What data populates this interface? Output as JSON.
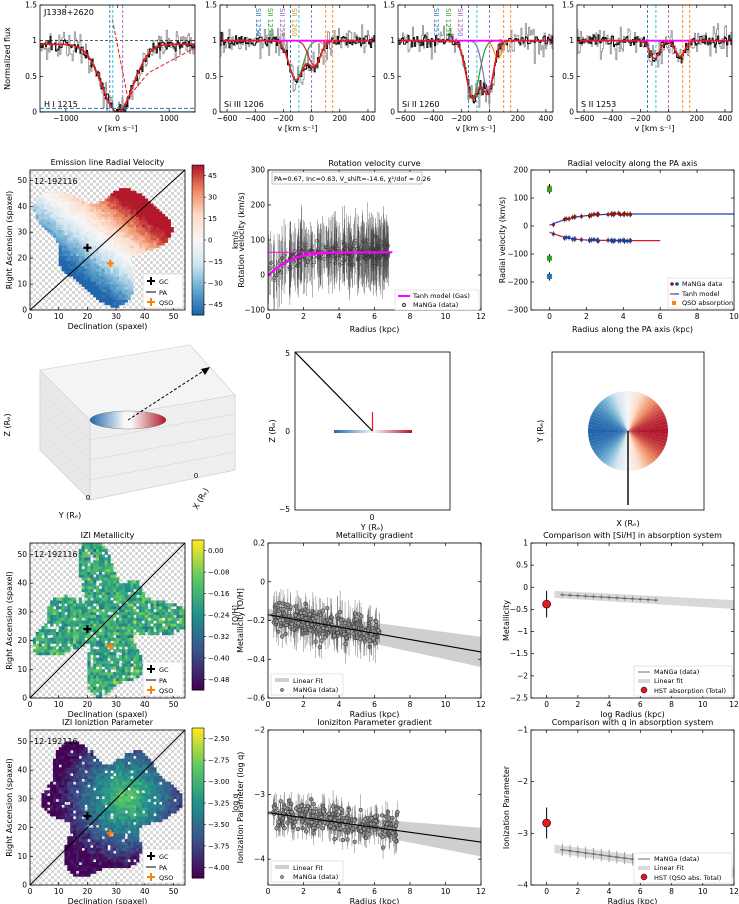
{
  "figure": {
    "spectra": [
      {
        "label": "H I 1215",
        "name": "J1338+2620",
        "xlim": [
          -1500,
          1500
        ],
        "xticks": [
          -1000,
          0,
          1000
        ],
        "xlabel": "v [km s⁻¹]",
        "ylabel": "Normalized flux",
        "ylim": [
          0,
          1.5
        ],
        "yticks": [
          0,
          0.5,
          1.0,
          1.5
        ],
        "vlines": [
          -150,
          -90,
          100
        ],
        "lines": []
      },
      {
        "label": "Si III 1206",
        "xlim": [
          -650,
          450
        ],
        "xticks": [
          -600,
          -400,
          -200,
          0,
          200,
          400
        ],
        "xlabel": "v [km s⁻¹]",
        "ylim": [
          0,
          1.5
        ],
        "yticks": [
          0,
          0.5,
          1.0,
          1.5
        ],
        "vlines": [
          -150,
          -90,
          0,
          100,
          150
        ],
        "lines": [
          "SII 1250",
          "SII 1253",
          "SII 1259",
          "SII 1260"
        ]
      },
      {
        "label": "Si II 1260",
        "xlim": [
          -650,
          450
        ],
        "xticks": [
          -600,
          -400,
          -200,
          0,
          200,
          400
        ],
        "xlabel": "v [km s⁻¹]",
        "ylim": [
          0,
          1.5
        ],
        "yticks": [
          0,
          0.5,
          1.0,
          1.5
        ],
        "vlines": [
          -150,
          -90,
          0,
          100,
          150
        ],
        "lines": [
          "SII 1253",
          "SII 1259",
          "SII 1250"
        ]
      },
      {
        "label": "S II 1253",
        "xlim": [
          -650,
          450
        ],
        "xticks": [
          -600,
          -400,
          -200,
          0,
          200,
          400
        ],
        "xlabel": "v [km s⁻¹]",
        "ylim": [
          0,
          1.5
        ],
        "yticks": [
          0,
          0.5,
          1.0,
          1.5
        ],
        "vlines": [
          -150,
          -90,
          0,
          100,
          150
        ],
        "lines": []
      }
    ],
    "row2": {
      "map": {
        "title": "Emission line Radial Velocity",
        "id": "12-192116",
        "xlabel": "Declination (spaxel)",
        "ylabel": "Right Ascension (spaxel)",
        "cbar_label": "km/s",
        "cbar_ticks": [
          "45",
          "30",
          "15",
          "0",
          "-15",
          "-30",
          "-45"
        ],
        "legend": [
          "GC",
          "PA",
          "QSO"
        ],
        "ticks": [
          0,
          10,
          20,
          30,
          40,
          50
        ]
      },
      "rot": {
        "title": "Rotation velocity curve",
        "annot": "PA=0.67, Inc=0.63, V_shift=-14.6, χ²/dof = 0.26",
        "xlabel": "Radius (kpc)",
        "ylabel": "Rotation velocity (km/s)",
        "xlim": [
          0,
          12
        ],
        "ylim": [
          -100,
          300
        ],
        "xticks": [
          0,
          2,
          4,
          6,
          8,
          10,
          12
        ],
        "yticks": [
          -100,
          0,
          100,
          200,
          300
        ],
        "legend": [
          "Tanh model (Gas)",
          "MaNGa (data)"
        ],
        "model_vmax": 65,
        "model_rt": 1.6
      },
      "radvel": {
        "title": "Radial velocity  along the PA axis",
        "xlabel": "Radius  along the PA axis (kpc)",
        "ylabel": "Radial velocity (km/s)",
        "xlim": [
          -1,
          10
        ],
        "ylim": [
          -300,
          200
        ],
        "xticks": [
          0,
          2,
          4,
          6,
          8,
          10
        ],
        "yticks": [
          -300,
          -200,
          -100,
          0,
          100,
          200
        ],
        "legend": [
          "MaNGa data",
          "Tanh model",
          "QSO absorption"
        ],
        "qso": [
          {
            "v": 135,
            "c": "#ff7f0e"
          },
          {
            "v": 130,
            "c": "#2ca02c"
          },
          {
            "v": -115,
            "c": "#2ca02c"
          },
          {
            "v": -180,
            "c": "#1f77b4"
          }
        ]
      }
    },
    "row3": {
      "ax3d": {
        "zlabel": "Z (Rₑ)",
        "ylabel": "Y (Rₑ)",
        "xlabel": "X (Rₑ)",
        "ticks": [
          "0",
          "0"
        ]
      },
      "side": {
        "xlabel": "Y (Rₑ)",
        "ylabel": "Z (Rₑ)",
        "ticks": [
          "5",
          "0",
          "−5",
          "0"
        ]
      },
      "face": {
        "xlabel": "X (Rₑ)",
        "ylabel": "Y (Rₑ)"
      }
    },
    "row4": {
      "map": {
        "title": "IZI Metallicity",
        "id": "12-192116",
        "xlabel": "Declination (spaxel)",
        "ylabel": "Right Ascension (spaxel)",
        "cbar_label": "[O/H]",
        "cbar_ticks": [
          "0.00",
          "-0.08",
          "-0.16",
          "-0.24",
          "-0.32",
          "-0.40",
          "-0.48"
        ],
        "legend": [
          "GC",
          "PA",
          "QSO"
        ],
        "ticks": [
          0,
          10,
          20,
          30,
          40,
          50
        ]
      },
      "grad": {
        "title": "Metallicity gradient",
        "xlabel": "Radius (kpc)",
        "ylabel": "Metallicity [O/H]",
        "xlim": [
          0,
          12
        ],
        "ylim": [
          -0.6,
          0.2
        ],
        "xticks": [
          0,
          2,
          4,
          6,
          8,
          10,
          12
        ],
        "yticks": [
          -0.6,
          -0.4,
          -0.2,
          0.0,
          0.2
        ],
        "legend": [
          "Linear Fit",
          "MaNGa (data)"
        ],
        "fit": [
          -0.17,
          -0.016
        ]
      },
      "comp": {
        "title": "Comparison with [Si/H] in absorption system",
        "xlabel": "log Radius (kpc)",
        "ylabel": "Metallicity",
        "xlim": [
          -1,
          12
        ],
        "ylim": [
          -2.5,
          1
        ],
        "xticks": [
          0,
          2,
          4,
          6,
          8,
          10,
          12
        ],
        "yticks": [
          -2.5,
          -2,
          -1.5,
          -1,
          -0.5,
          0,
          0.5,
          1
        ],
        "legend": [
          "MaNGa (data)",
          "Linear fit",
          "HST absorption (Total)"
        ],
        "hst": {
          "x": 0,
          "y": -0.38,
          "err": 0.3
        }
      }
    },
    "row5": {
      "map": {
        "title": "IZI Ioniztion Parameter",
        "id": "12-192116",
        "xlabel": "Declination (spaxel)",
        "ylabel": "Right Ascension (spaxel)",
        "cbar_label": "log q",
        "cbar_ticks": [
          "-2.50",
          "-2.75",
          "-3.00",
          "-3.25",
          "-3.50",
          "-3.75",
          "-4.00"
        ],
        "legend": [
          "GC",
          "PA",
          "QSO"
        ],
        "ticks": [
          0,
          10,
          20,
          30,
          40,
          50
        ]
      },
      "grad": {
        "title": "Ioniziton Parameter gradient",
        "xlabel": "Radius (kpc)",
        "ylabel": "Ionization Parameter (log q)",
        "xlim": [
          0,
          12
        ],
        "ylim": [
          -4.4,
          -2
        ],
        "xticks": [
          0,
          2,
          4,
          6,
          8,
          10,
          12
        ],
        "yticks": [
          -4,
          -3,
          -2
        ],
        "legend": [
          "Linear Fit",
          "MaNGa (data)"
        ],
        "fit": [
          -3.28,
          -0.038
        ]
      },
      "comp": {
        "title": "Comparison with q in absorption system",
        "xlabel": "Radius (kpc)",
        "ylabel": "Ionization Parameter",
        "xlim": [
          -1,
          12
        ],
        "ylim": [
          -4,
          -1
        ],
        "xticks": [
          0,
          2,
          4,
          6,
          8,
          10,
          12
        ],
        "yticks": [
          -4,
          -3,
          -2,
          -1
        ],
        "legend": [
          "MaNGa (data)",
          "Linear Fit",
          "HST (QSO abs. Total)"
        ],
        "hst": {
          "x": 0,
          "y": -2.8,
          "err": 0.3
        }
      }
    }
  },
  "chart_data": [
    {
      "type": "line",
      "title": "H I 1215 (J1338+2620)",
      "xlabel": "v [km s⁻¹]",
      "ylabel": "Normalized flux",
      "x_range": [
        -1500,
        1500
      ],
      "y_range": [
        0,
        1.5
      ],
      "series": [
        {
          "name": "Voigt fit",
          "x": [
            -1500,
            -1000,
            -500,
            -300,
            -200,
            0,
            200,
            400,
            600,
            1000,
            1500
          ],
          "y": [
            0.95,
            0.9,
            0.55,
            0.2,
            0.02,
            0.0,
            0.05,
            0.35,
            0.6,
            0.85,
            0.92
          ]
        }
      ]
    },
    {
      "type": "line",
      "title": "Si III 1206",
      "xlabel": "v [km s⁻¹]",
      "x_range": [
        -650,
        450
      ],
      "y_range": [
        0,
        1.5
      ],
      "series": [
        {
          "name": "Total fit",
          "x": [
            -600,
            -300,
            -200,
            -100,
            0,
            100,
            200,
            400
          ],
          "y": [
            1.0,
            0.98,
            0.55,
            0.3,
            0.45,
            0.75,
            0.95,
            1.0
          ]
        }
      ]
    },
    {
      "type": "line",
      "title": "Si II 1260",
      "xlabel": "v [km s⁻¹]",
      "x_range": [
        -650,
        450
      ],
      "y_range": [
        0,
        1.5
      ],
      "series": [
        {
          "name": "Total fit",
          "x": [
            -600,
            -300,
            -200,
            -100,
            0,
            100,
            200,
            400
          ],
          "y": [
            1.0,
            0.95,
            0.4,
            0.1,
            0.15,
            0.6,
            0.95,
            1.0
          ]
        }
      ]
    },
    {
      "type": "line",
      "title": "S II 1253",
      "xlabel": "v [km s⁻¹]",
      "x_range": [
        -650,
        450
      ],
      "y_range": [
        0,
        1.5
      ],
      "series": [
        {
          "name": "Total fit",
          "x": [
            -600,
            -200,
            -100,
            0,
            100,
            200,
            400
          ],
          "y": [
            1.0,
            0.98,
            0.75,
            0.8,
            0.75,
            0.98,
            1.0
          ]
        }
      ]
    },
    {
      "type": "scatter",
      "title": "Rotation velocity curve",
      "xlabel": "Radius (kpc)",
      "ylabel": "Rotation velocity (km/s)",
      "x_range": [
        0,
        12
      ],
      "y_range": [
        -100,
        300
      ],
      "series": [
        {
          "name": "Tanh model (Gas)",
          "x": [
            0,
            1,
            2,
            3,
            4,
            5,
            6,
            7
          ],
          "y": [
            0,
            33,
            50,
            59,
            63,
            64,
            65,
            65
          ]
        }
      ]
    },
    {
      "type": "scatter",
      "title": "Radial velocity along the PA axis",
      "xlabel": "Radius along the PA axis (kpc)",
      "ylabel": "Radial velocity (km/s)",
      "x_range": [
        -1,
        10
      ],
      "y_range": [
        -300,
        200
      ],
      "series": [
        {
          "name": "Tanh model",
          "x": [
            0,
            2,
            4,
            6,
            10
          ],
          "y": [
            5,
            28,
            36,
            38,
            40
          ]
        },
        {
          "name": "Tanh model (receding)",
          "x": [
            0,
            2,
            4,
            6
          ],
          "y": [
            -20,
            -45,
            -50,
            -52
          ]
        },
        {
          "name": "QSO absorption",
          "x": [
            0,
            0,
            0,
            0
          ],
          "y": [
            135,
            130,
            -115,
            -180
          ]
        }
      ]
    },
    {
      "type": "scatter",
      "title": "Metallicity gradient",
      "xlabel": "Radius (kpc)",
      "ylabel": "Metallicity [O/H]",
      "x_range": [
        0,
        12
      ],
      "y_range": [
        -0.6,
        0.2
      ],
      "series": [
        {
          "name": "Linear Fit",
          "x": [
            0,
            12
          ],
          "y": [
            -0.17,
            -0.36
          ]
        }
      ]
    },
    {
      "type": "scatter",
      "title": "Comparison with [Si/H] in absorption system",
      "xlabel": "log Radius (kpc)",
      "ylabel": "Metallicity",
      "x_range": [
        -1,
        12
      ],
      "y_range": [
        -2.5,
        1
      ],
      "series": [
        {
          "name": "MaNGa (data)",
          "x": [
            1,
            2,
            3,
            4,
            5,
            6,
            7
          ],
          "y": [
            -0.17,
            -0.2,
            -0.22,
            -0.23,
            -0.24,
            -0.27,
            -0.3
          ]
        },
        {
          "name": "HST absorption (Total)",
          "x": [
            0
          ],
          "y": [
            -0.38
          ]
        }
      ]
    },
    {
      "type": "scatter",
      "title": "Ioniziton Parameter gradient",
      "xlabel": "Radius (kpc)",
      "ylabel": "Ionization Parameter (log q)",
      "x_range": [
        0,
        12
      ],
      "y_range": [
        -4.4,
        -2
      ],
      "series": [
        {
          "name": "Linear Fit",
          "x": [
            0,
            12
          ],
          "y": [
            -3.28,
            -3.74
          ]
        }
      ]
    },
    {
      "type": "scatter",
      "title": "Comparison with q in absorption system",
      "xlabel": "Radius (kpc)",
      "ylabel": "Ionization Parameter",
      "x_range": [
        -1,
        12
      ],
      "y_range": [
        -4,
        -1
      ],
      "series": [
        {
          "name": "MaNGa (data)",
          "x": [
            1,
            2,
            3,
            4,
            5,
            6,
            7
          ],
          "y": [
            -3.3,
            -3.35,
            -3.4,
            -3.45,
            -3.5,
            -3.55,
            -3.6
          ]
        },
        {
          "name": "HST (QSO abs. Total)",
          "x": [
            0
          ],
          "y": [
            -2.8
          ]
        }
      ]
    }
  ]
}
